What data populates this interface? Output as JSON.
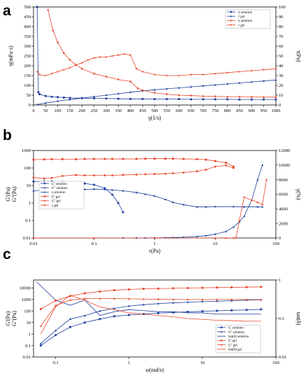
{
  "chart_data": [
    {
      "panel": "a",
      "type": "line",
      "xlabel": "γ(1/s)",
      "ylabel": "η(mPa·s)",
      "y2label": "τ(Pa)",
      "xlim": [
        0,
        1000
      ],
      "ylim": [
        0,
        500
      ],
      "y2lim": [
        0,
        100
      ],
      "xticks": [
        "0",
        "50",
        "100",
        "150",
        "200",
        "250",
        "300",
        "350",
        "400",
        "450",
        "500",
        "550",
        "600",
        "650",
        "700",
        "750",
        "800",
        "850",
        "900",
        "950",
        "1000"
      ],
      "yticks": [
        "0",
        "50",
        "100",
        "150",
        "200",
        "250",
        "300",
        "350",
        "400",
        "450",
        "500"
      ],
      "y2ticks": [
        "0",
        "10",
        "20",
        "30",
        "40",
        "50",
        "60",
        "70",
        "80",
        "90",
        "100"
      ],
      "legend_position": "top-right",
      "series": [
        {
          "name": "η  solution",
          "axis": "left",
          "color": "#1f3f9e",
          "marker": "square",
          "x": [
            15,
            20,
            25,
            50,
            75,
            100,
            125,
            150,
            200,
            250,
            300,
            350,
            400,
            450,
            500,
            550,
            600,
            650,
            700,
            750,
            800,
            850,
            900,
            950,
            1000
          ],
          "y": [
            500,
            65,
            55,
            46,
            42,
            40,
            38,
            36,
            35,
            34,
            33,
            32,
            31,
            31,
            30,
            30,
            30,
            29,
            29,
            29,
            29,
            28,
            28,
            28,
            28
          ]
        },
        {
          "name": "τ  gel",
          "axis": "right",
          "color": "#1f3f9e",
          "marker": "triangle",
          "x": [
            15,
            50,
            100,
            150,
            200,
            250,
            300,
            350,
            400,
            450,
            500,
            550,
            600,
            650,
            700,
            750,
            800,
            850,
            900,
            950,
            1000
          ],
          "y": [
            0.5,
            2,
            4,
            5.5,
            7,
            8.5,
            10,
            11.5,
            13,
            14.5,
            15.5,
            16.5,
            17.5,
            18.5,
            19.5,
            20.5,
            21.5,
            22.5,
            23.5,
            24.5,
            25.5
          ]
        },
        {
          "name": "η  solution",
          "axis": "left",
          "color": "#e8452a",
          "marker": "diamond",
          "x": [
            60,
            80,
            100,
            125,
            150,
            175,
            200,
            250,
            300,
            350,
            400,
            430,
            450,
            500,
            550,
            600,
            650,
            700,
            750,
            800,
            850,
            900,
            950,
            1000
          ],
          "y": [
            485,
            380,
            320,
            265,
            230,
            205,
            185,
            160,
            145,
            130,
            120,
            85,
            75,
            62,
            55,
            50,
            48,
            45,
            44,
            42,
            42,
            41,
            40,
            40
          ]
        },
        {
          "name": "τ  gel",
          "axis": "right",
          "color": "#e8452a",
          "marker": "star",
          "x": [
            15,
            25,
            50,
            75,
            100,
            125,
            150,
            175,
            200,
            225,
            250,
            275,
            300,
            325,
            350,
            375,
            400,
            425,
            450,
            500,
            550,
            600,
            650,
            700,
            750,
            800,
            850,
            900,
            950,
            1000
          ],
          "y": [
            34,
            31,
            30,
            32,
            34,
            36,
            38,
            41,
            43,
            46,
            48,
            49,
            49,
            50,
            51,
            52,
            51,
            37,
            34,
            31,
            30,
            30,
            31,
            31,
            32,
            33,
            34,
            35,
            36,
            37
          ]
        }
      ]
    },
    {
      "panel": "b",
      "type": "line",
      "xlabel": "τ(Pa)",
      "ylabel": "G'(Pa)\nG''(Pa)",
      "y2label": "γ(%)",
      "xscale": "log",
      "yscale": "log",
      "xlim": [
        0.01,
        100
      ],
      "ylim": [
        0.01,
        1000
      ],
      "y2lim": [
        0,
        12000
      ],
      "xticks": [
        "0.01",
        "0.1",
        "1",
        "10",
        "100"
      ],
      "yticks": [
        "0.01",
        "0.1",
        "1",
        "10",
        "100",
        "1000"
      ],
      "y2ticks": [
        "0",
        "2000",
        "4000",
        "6000",
        "8000",
        "10000",
        "12000"
      ],
      "legend_position": "left",
      "series": [
        {
          "name": "G'  solution",
          "axis": "left",
          "color": "#1f3f9e",
          "marker": "square",
          "x": [
            0.01,
            0.015,
            0.02,
            0.03,
            0.05,
            0.07,
            0.1,
            0.15,
            0.2,
            0.25,
            0.3
          ],
          "y": [
            17,
            17,
            17,
            16,
            15,
            13,
            11,
            7,
            3,
            1,
            0.3
          ]
        },
        {
          "name": "G''  solution",
          "axis": "left",
          "color": "#1f3f9e",
          "marker": "triangle",
          "x": [
            0.01,
            0.015,
            0.02,
            0.03,
            0.05,
            0.07,
            0.1,
            0.15,
            0.2,
            0.3,
            0.5,
            0.7,
            1,
            1.5,
            2,
            3,
            5,
            7,
            10,
            20,
            30,
            50,
            60
          ],
          "y": [
            5,
            5.5,
            5.5,
            5.5,
            5.8,
            6,
            6.2,
            6,
            5.5,
            5,
            4,
            3.2,
            2.5,
            1.6,
            1.1,
            0.8,
            0.6,
            0.6,
            0.62,
            0.62,
            0.6,
            0.6,
            0.6
          ]
        },
        {
          "name": "γ  solution",
          "axis": "right",
          "color": "#1f3f9e",
          "marker": "triangle",
          "x": [
            0.3,
            0.5,
            0.7,
            1,
            1.5,
            2,
            3,
            5,
            7,
            10,
            15,
            20,
            25,
            30,
            40,
            50,
            60
          ],
          "y": [
            0,
            5,
            12,
            25,
            45,
            70,
            110,
            200,
            320,
            520,
            900,
            1500,
            2200,
            3000,
            5200,
            8000,
            10000
          ]
        },
        {
          "name": "G'  gel",
          "axis": "left",
          "color": "#e8452a",
          "marker": "square",
          "x": [
            0.01,
            0.015,
            0.02,
            0.03,
            0.05,
            0.07,
            0.1,
            0.15,
            0.2,
            0.3,
            0.5,
            0.7,
            1,
            1.5,
            2,
            3,
            5,
            7,
            10,
            15,
            20
          ],
          "y": [
            300,
            310,
            320,
            320,
            320,
            330,
            330,
            330,
            330,
            330,
            330,
            340,
            340,
            340,
            340,
            330,
            320,
            300,
            250,
            200,
            120
          ]
        },
        {
          "name": "G''  gel",
          "axis": "left",
          "color": "#e8452a",
          "marker": "circle",
          "x": [
            0.01,
            0.015,
            0.02,
            0.03,
            0.05,
            0.07,
            0.1,
            0.15,
            0.2,
            0.3,
            0.5,
            0.7,
            1,
            1.5,
            2,
            3,
            5,
            7,
            10,
            15,
            20
          ],
          "y": [
            28,
            25,
            27,
            35,
            40,
            38,
            38,
            38,
            38,
            40,
            42,
            44,
            45,
            47,
            50,
            55,
            65,
            80,
            120,
            140,
            100
          ]
        },
        {
          "name": "γ  gel",
          "axis": "right",
          "color": "#e8452a",
          "marker": "triangle",
          "x": [
            0.01,
            0.1,
            1,
            10,
            15,
            20,
            22,
            25,
            30,
            40,
            50,
            60,
            70
          ],
          "y": [
            0,
            0,
            0,
            0,
            0,
            0,
            50,
            2400,
            5600,
            5200,
            4900,
            4600,
            8000
          ]
        }
      ]
    },
    {
      "panel": "c",
      "type": "line",
      "xlabel": "ω(rad/s)",
      "ylabel": "G'(Pa)\nG''(Pa)",
      "y2label": "tan(δ)",
      "xscale": "log",
      "yscale": "log",
      "y2scale": "log",
      "xlim": [
        0.05,
        100
      ],
      "ylim": [
        0.01,
        50000
      ],
      "y2lim": [
        0.01,
        1
      ],
      "xticks": [
        "0.1",
        "1",
        "10",
        "100"
      ],
      "yticks": [
        "0.01",
        "0.1",
        "1",
        "10",
        "100",
        "1000",
        "10000"
      ],
      "y2ticks": [
        "0.01",
        "0.1",
        "1"
      ],
      "legend_position": "bottom-right",
      "series": [
        {
          "name": "G'  solution",
          "axis": "left",
          "color": "#1f3f9e",
          "marker": "square",
          "x": [
            0.063,
            0.1,
            0.158,
            0.25,
            0.4,
            0.63,
            1,
            1.58,
            2.5,
            4,
            6.3,
            10,
            15.8,
            25,
            40,
            63
          ],
          "y": [
            0.1,
            0.8,
            4,
            10,
            20,
            35,
            45,
            55,
            65,
            75,
            85,
            95,
            105,
            115,
            125,
            140
          ]
        },
        {
          "name": "G''  solution",
          "axis": "left",
          "color": "#1f3f9e",
          "marker": "triangle",
          "x": [
            0.063,
            0.1,
            0.158,
            0.25,
            0.4,
            0.63,
            1,
            1.58,
            2.5,
            4,
            6.3,
            10,
            15.8,
            25,
            40,
            63
          ],
          "y": [
            0.15,
            2,
            20,
            40,
            100,
            170,
            270,
            360,
            440,
            520,
            580,
            660,
            720,
            800,
            880,
            950
          ]
        },
        {
          "name": "tan(δ)  solution",
          "axis": "right",
          "color": "#1f3f9e",
          "marker": "none",
          "x": [
            0.055,
            0.1,
            0.158,
            0.25,
            0.4,
            0.63,
            1,
            1.58,
            2.5,
            4,
            6.3,
            10,
            15.8,
            25,
            40,
            63
          ],
          "y": [
            0.9,
            0.3,
            0.22,
            0.3,
            0.12,
            0.15,
            0.17,
            0.16,
            0.15,
            0.15,
            0.14,
            0.14,
            0.13,
            0.13,
            0.13,
            0.13
          ]
        },
        {
          "name": "G'  gel",
          "axis": "left",
          "color": "#e8452a",
          "marker": "square",
          "x": [
            0.063,
            0.1,
            0.158,
            0.25,
            0.4,
            0.63,
            1,
            1.58,
            2.5,
            4,
            6.3,
            10,
            15.8,
            25,
            40,
            63
          ],
          "y": [
            150,
            800,
            2000,
            3500,
            5000,
            6500,
            7500,
            8500,
            9000,
            9500,
            10000,
            10500,
            11000,
            11500,
            12000,
            12500
          ]
        },
        {
          "name": "G''  gel",
          "axis": "left",
          "color": "#e8452a",
          "marker": "triangle",
          "x": [
            0.063,
            0.1,
            0.158,
            0.25,
            0.4,
            0.63,
            1,
            1.58,
            2.5,
            4,
            6.3,
            10,
            15.8,
            25,
            40,
            63
          ],
          "y": [
            5,
            300,
            900,
            1200,
            1200,
            1200,
            1150,
            1100,
            1050,
            1000,
            1000,
            1000,
            1000,
            1000,
            1000,
            1000
          ]
        },
        {
          "name": "tan(δ)  gel",
          "axis": "right",
          "color": "#e8452a",
          "marker": "none",
          "x": [
            0.063,
            0.1,
            0.158,
            0.25,
            0.4,
            0.63,
            1,
            1.58,
            2.5,
            4,
            6.3,
            10,
            15.8,
            25,
            40,
            63
          ],
          "y": [
            0.04,
            0.2,
            0.4,
            0.3,
            0.2,
            0.17,
            0.14,
            0.13,
            0.12,
            0.11,
            0.1,
            0.095,
            0.09,
            0.088,
            0.085,
            0.085
          ]
        }
      ]
    }
  ],
  "panel_letters": [
    "a",
    "b",
    "c"
  ]
}
